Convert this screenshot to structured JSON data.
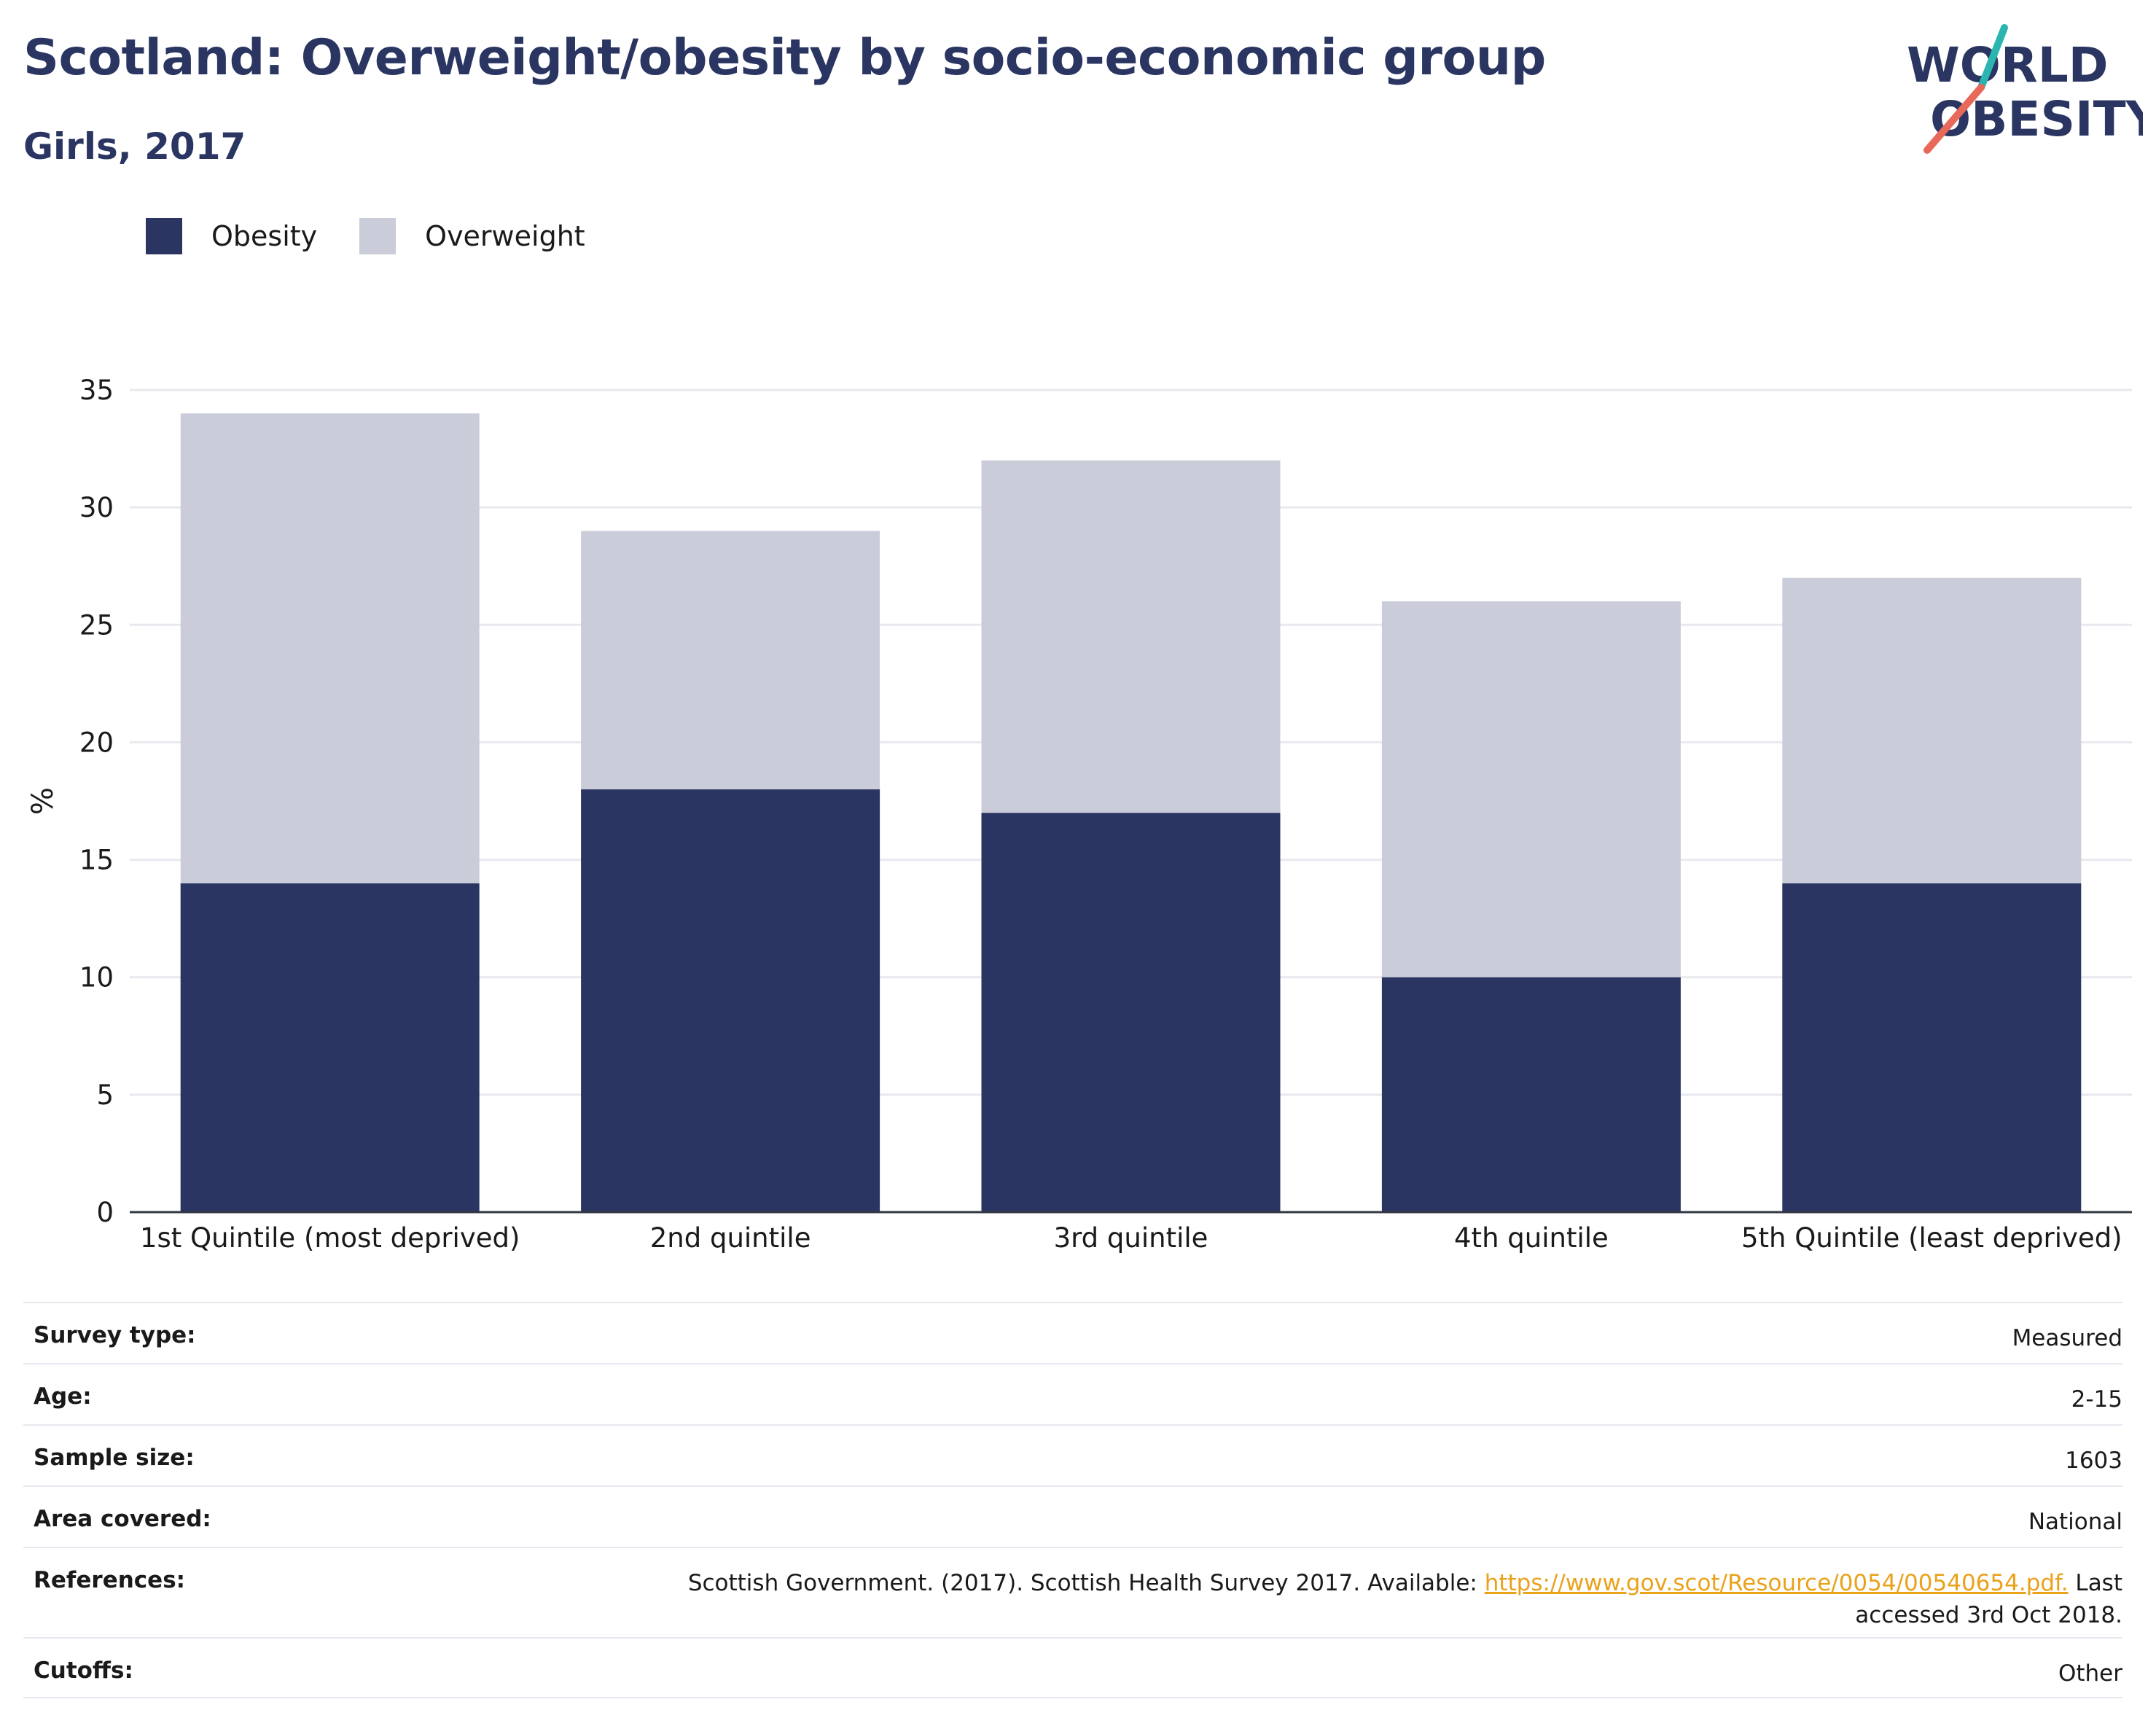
{
  "header": {
    "title": "Scotland: Overweight/obesity by socio-economic group",
    "subtitle": "Girls, 2017"
  },
  "logo": {
    "line1": "WORLD",
    "line2": "OBESITY",
    "icon": "world-obesity-logo",
    "colors": {
      "text": "#2a3562",
      "accent_teal": "#2bb5b0",
      "accent_coral": "#e8685a"
    }
  },
  "chart_data": {
    "type": "bar",
    "stacked": true,
    "categories": [
      "1st Quintile (most deprived)",
      "2nd quintile",
      "3rd quintile",
      "4th quintile",
      "5th Quintile (least deprived)"
    ],
    "series": [
      {
        "name": "Obesity",
        "color": "#2a3562",
        "values": [
          14,
          18,
          17,
          10,
          14
        ]
      },
      {
        "name": "Overweight",
        "color": "#cacdd9",
        "values": [
          20,
          11,
          15,
          16,
          13
        ]
      }
    ],
    "ylabel": "%",
    "ylim": [
      0,
      35
    ],
    "yticks": [
      0,
      5,
      10,
      15,
      20,
      25,
      30,
      35
    ],
    "grid": true,
    "legend": "top-left"
  },
  "info": {
    "rows": [
      {
        "key": "Survey type:",
        "value": "Measured"
      },
      {
        "key": "Age:",
        "value": "2-15"
      },
      {
        "key": "Sample size:",
        "value": "1603"
      },
      {
        "key": "Area covered:",
        "value": "National"
      },
      {
        "key": "References:",
        "value_prefix": "Scottish Government. (2017). Scottish Health Survey 2017. Available: ",
        "link": "https://www.gov.scot/Resource/0054/00540654.pdf.",
        "value_suffix": " Last",
        "value_line2": "accessed 3rd Oct 2018."
      },
      {
        "key": "Cutoffs:",
        "value": "Other"
      }
    ]
  }
}
